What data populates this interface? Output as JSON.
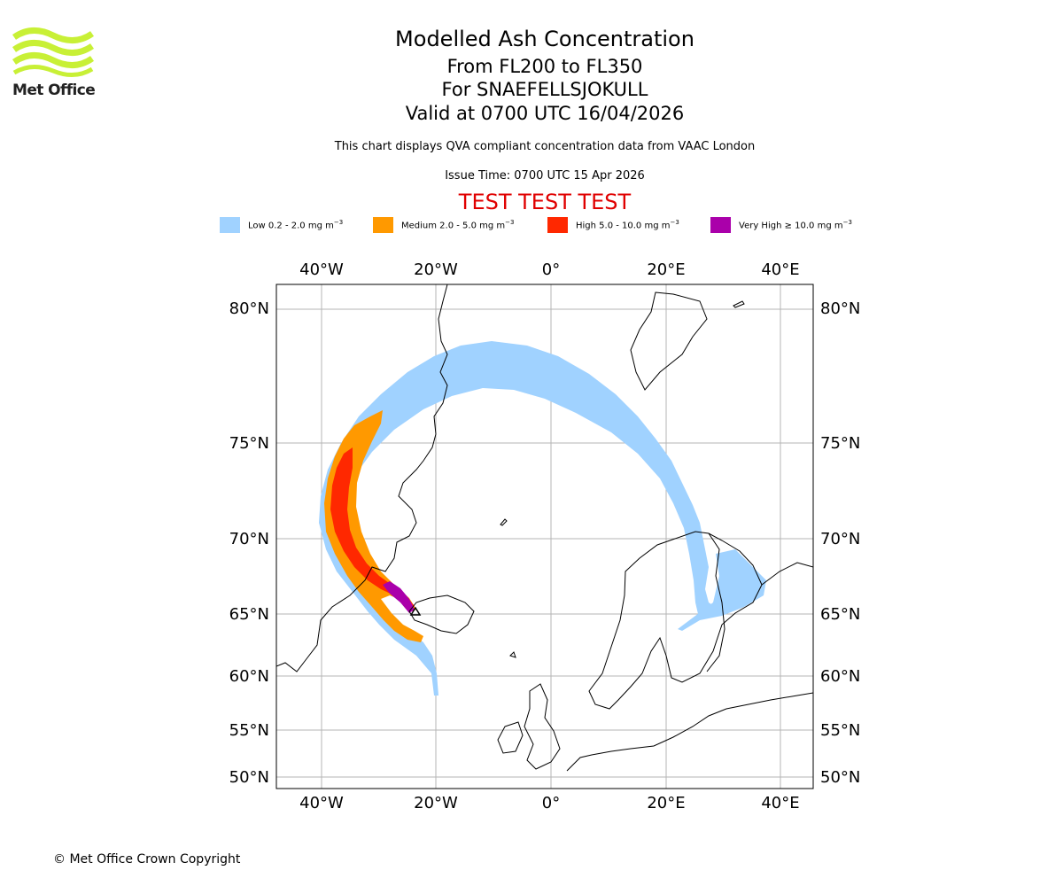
{
  "logo": {
    "text": "Met Office",
    "color": "#c8f036"
  },
  "titles": {
    "main": "Modelled Ash Concentration",
    "levels": "From FL200 to FL350",
    "volcano": "For SNAEFELLSJOKULL",
    "valid": "Valid at 0700 UTC 16/04/2026",
    "description": "This chart displays QVA compliant concentration data from VAAC London",
    "issue_time": "Issue Time: 0700 UTC 15 Apr 2026",
    "test_banner": "TEST TEST TEST"
  },
  "legend": [
    {
      "label": "Low 0.2 - 2.0 mg m",
      "unit_sup": "−3",
      "color": "#a0d2ff"
    },
    {
      "label": "Medium 2.0 - 5.0 mg m",
      "unit_sup": "−3",
      "color": "#ff9900"
    },
    {
      "label": "High 5.0 - 10.0 mg m",
      "unit_sup": "−3",
      "color": "#ff2800"
    },
    {
      "label": "Very High  ≥  10.0 mg m",
      "unit_sup": "−3",
      "color": "#aa00aa"
    }
  ],
  "map": {
    "longitude_labels": [
      "40°W",
      "20°W",
      "0°",
      "20°E",
      "40°E"
    ],
    "latitude_labels": [
      "80°N",
      "75°N",
      "70°N",
      "65°N",
      "60°N",
      "55°N",
      "50°N"
    ],
    "extent": {
      "lon_min": -48,
      "lon_max": 45,
      "lat_min": 49.5,
      "lat_max": 81
    },
    "grid": true,
    "source_marker": "triangle-marker"
  },
  "copyright": "© Met Office Crown Copyright"
}
